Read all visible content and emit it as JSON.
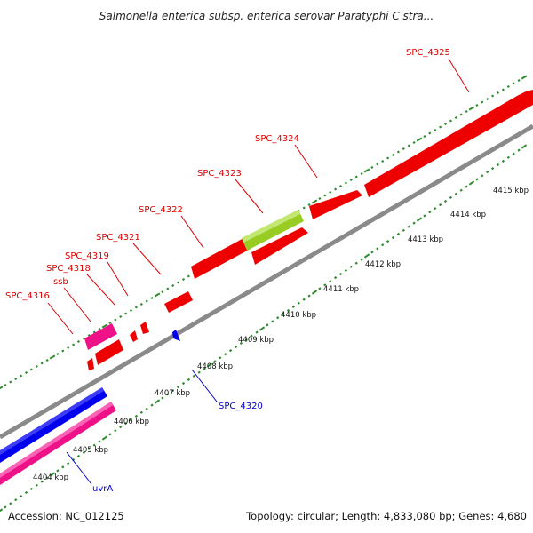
{
  "title": "Salmonella enterica subsp. enterica serovar Paratyphi C stra...",
  "footer": {
    "accession": "Accession: NC_012125",
    "summary": "Topology: circular; Length: 4,833,080 bp; Genes: 4,680"
  },
  "colors": {
    "forward_gene": "#ee0000",
    "reverse_gene": "#0000ee",
    "pink_gene": "#ee1188",
    "green_gene": "#99cc22",
    "backbone": "#888888",
    "tick": "#2e8b2e",
    "forward_label": "#dd0000",
    "reverse_label": "#0000cc"
  },
  "kbp_labels": [
    "4404 kbp",
    "4405 kbp",
    "4406 kbp",
    "4407 kbp",
    "4408 kbp",
    "4409 kbp",
    "4410 kbp",
    "4411 kbp",
    "4412 kbp",
    "4413 kbp",
    "4414 kbp",
    "4415 kbp"
  ],
  "gene_labels": [
    {
      "text": "SPC_4316",
      "strand": "forward"
    },
    {
      "text": "ssb",
      "strand": "forward"
    },
    {
      "text": "SPC_4318",
      "strand": "forward"
    },
    {
      "text": "SPC_4319",
      "strand": "forward"
    },
    {
      "text": "SPC_4321",
      "strand": "forward"
    },
    {
      "text": "SPC_4322",
      "strand": "forward"
    },
    {
      "text": "SPC_4323",
      "strand": "forward"
    },
    {
      "text": "SPC_4324",
      "strand": "forward"
    },
    {
      "text": "SPC_4325",
      "strand": "forward"
    },
    {
      "text": "SPC_4320",
      "strand": "reverse"
    },
    {
      "text": "uvrA",
      "strand": "reverse"
    }
  ]
}
